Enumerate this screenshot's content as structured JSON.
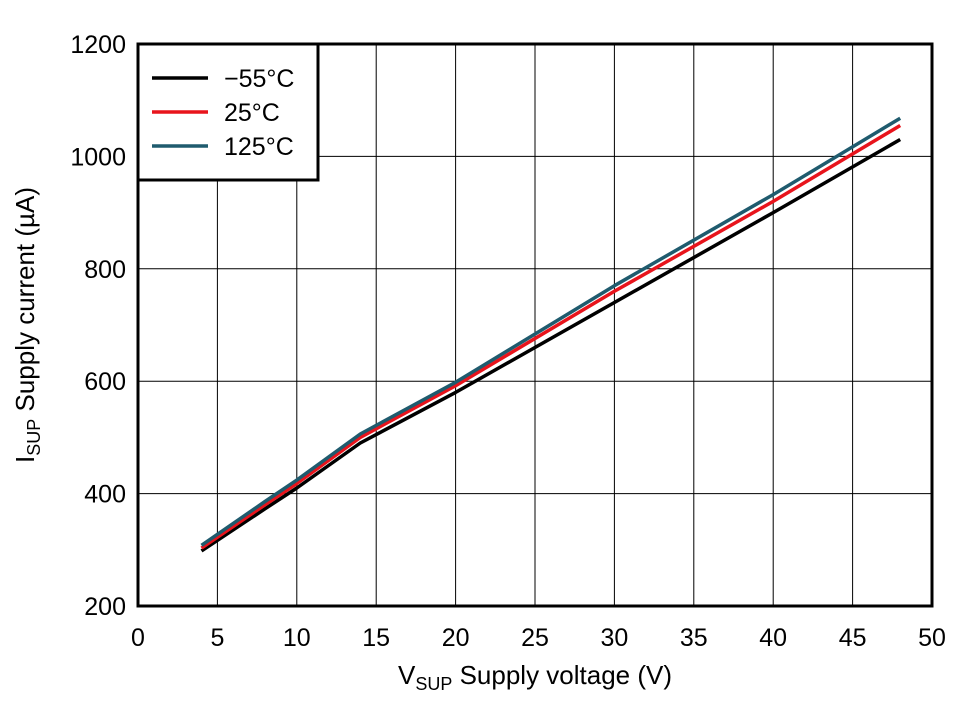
{
  "chart_data": {
    "type": "line",
    "xlabel_main": "V",
    "xlabel_sub": "SUP",
    "xlabel_rest": " Supply voltage (V)",
    "ylabel_main": "I",
    "ylabel_sub": "SUP",
    "ylabel_rest": " Supply current (µA)",
    "xlim": [
      0,
      50
    ],
    "ylim": [
      200,
      1200
    ],
    "xticks": [
      0,
      5,
      10,
      15,
      20,
      25,
      30,
      35,
      40,
      45,
      50
    ],
    "yticks": [
      200,
      400,
      600,
      800,
      1000,
      1200
    ],
    "grid": true,
    "legend_position": "top-left",
    "series": [
      {
        "name": "−55°C",
        "color": "#000000",
        "x": [
          4,
          8,
          10,
          14,
          20,
          30,
          40,
          48
        ],
        "y": [
          298,
          373,
          410,
          490,
          580,
          740,
          900,
          1030
        ]
      },
      {
        "name": "25°C",
        "color": "#e8141c",
        "x": [
          4,
          8,
          10,
          14,
          20,
          30,
          40,
          48
        ],
        "y": [
          303,
          380,
          418,
          500,
          592,
          760,
          920,
          1055
        ]
      },
      {
        "name": "125°C",
        "color": "#1f5b6e",
        "x": [
          4,
          8,
          10,
          14,
          20,
          30,
          40,
          48
        ],
        "y": [
          308,
          386,
          424,
          506,
          598,
          770,
          932,
          1068
        ]
      }
    ]
  }
}
